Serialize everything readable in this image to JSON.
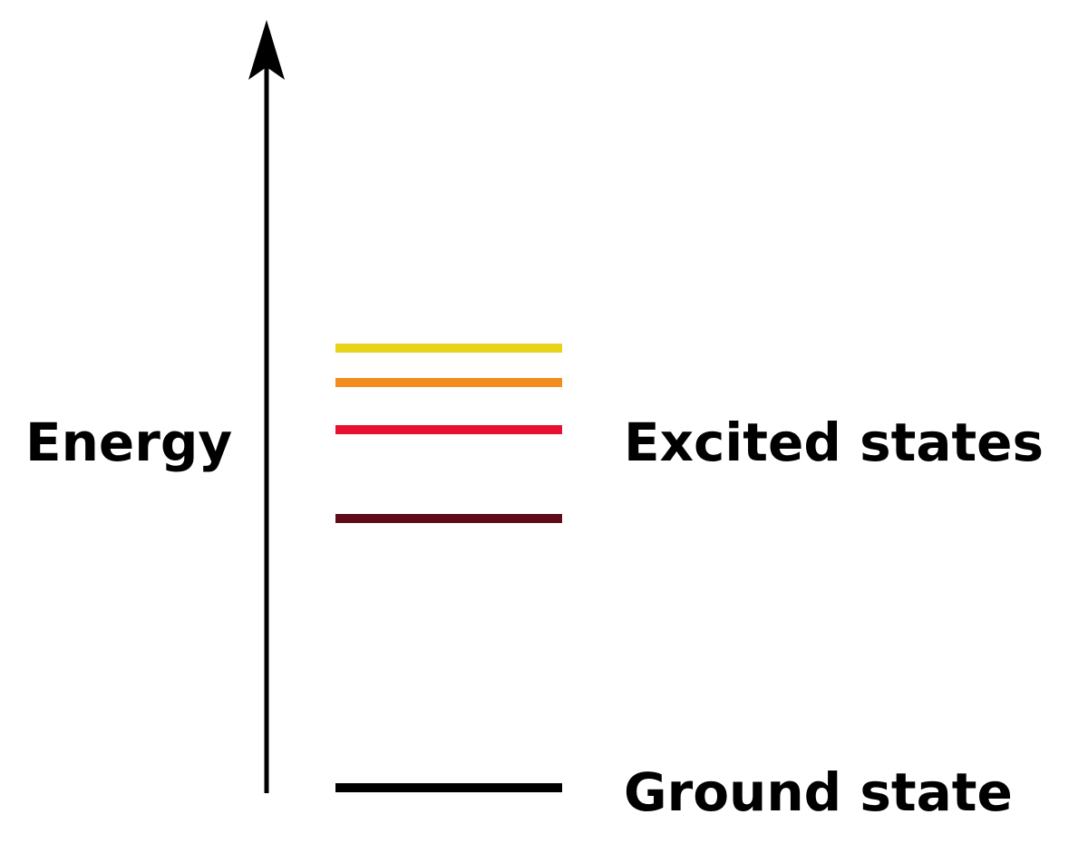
{
  "axis_label": "Energy",
  "excited_label": "Excited states",
  "ground_label": "Ground state"
}
